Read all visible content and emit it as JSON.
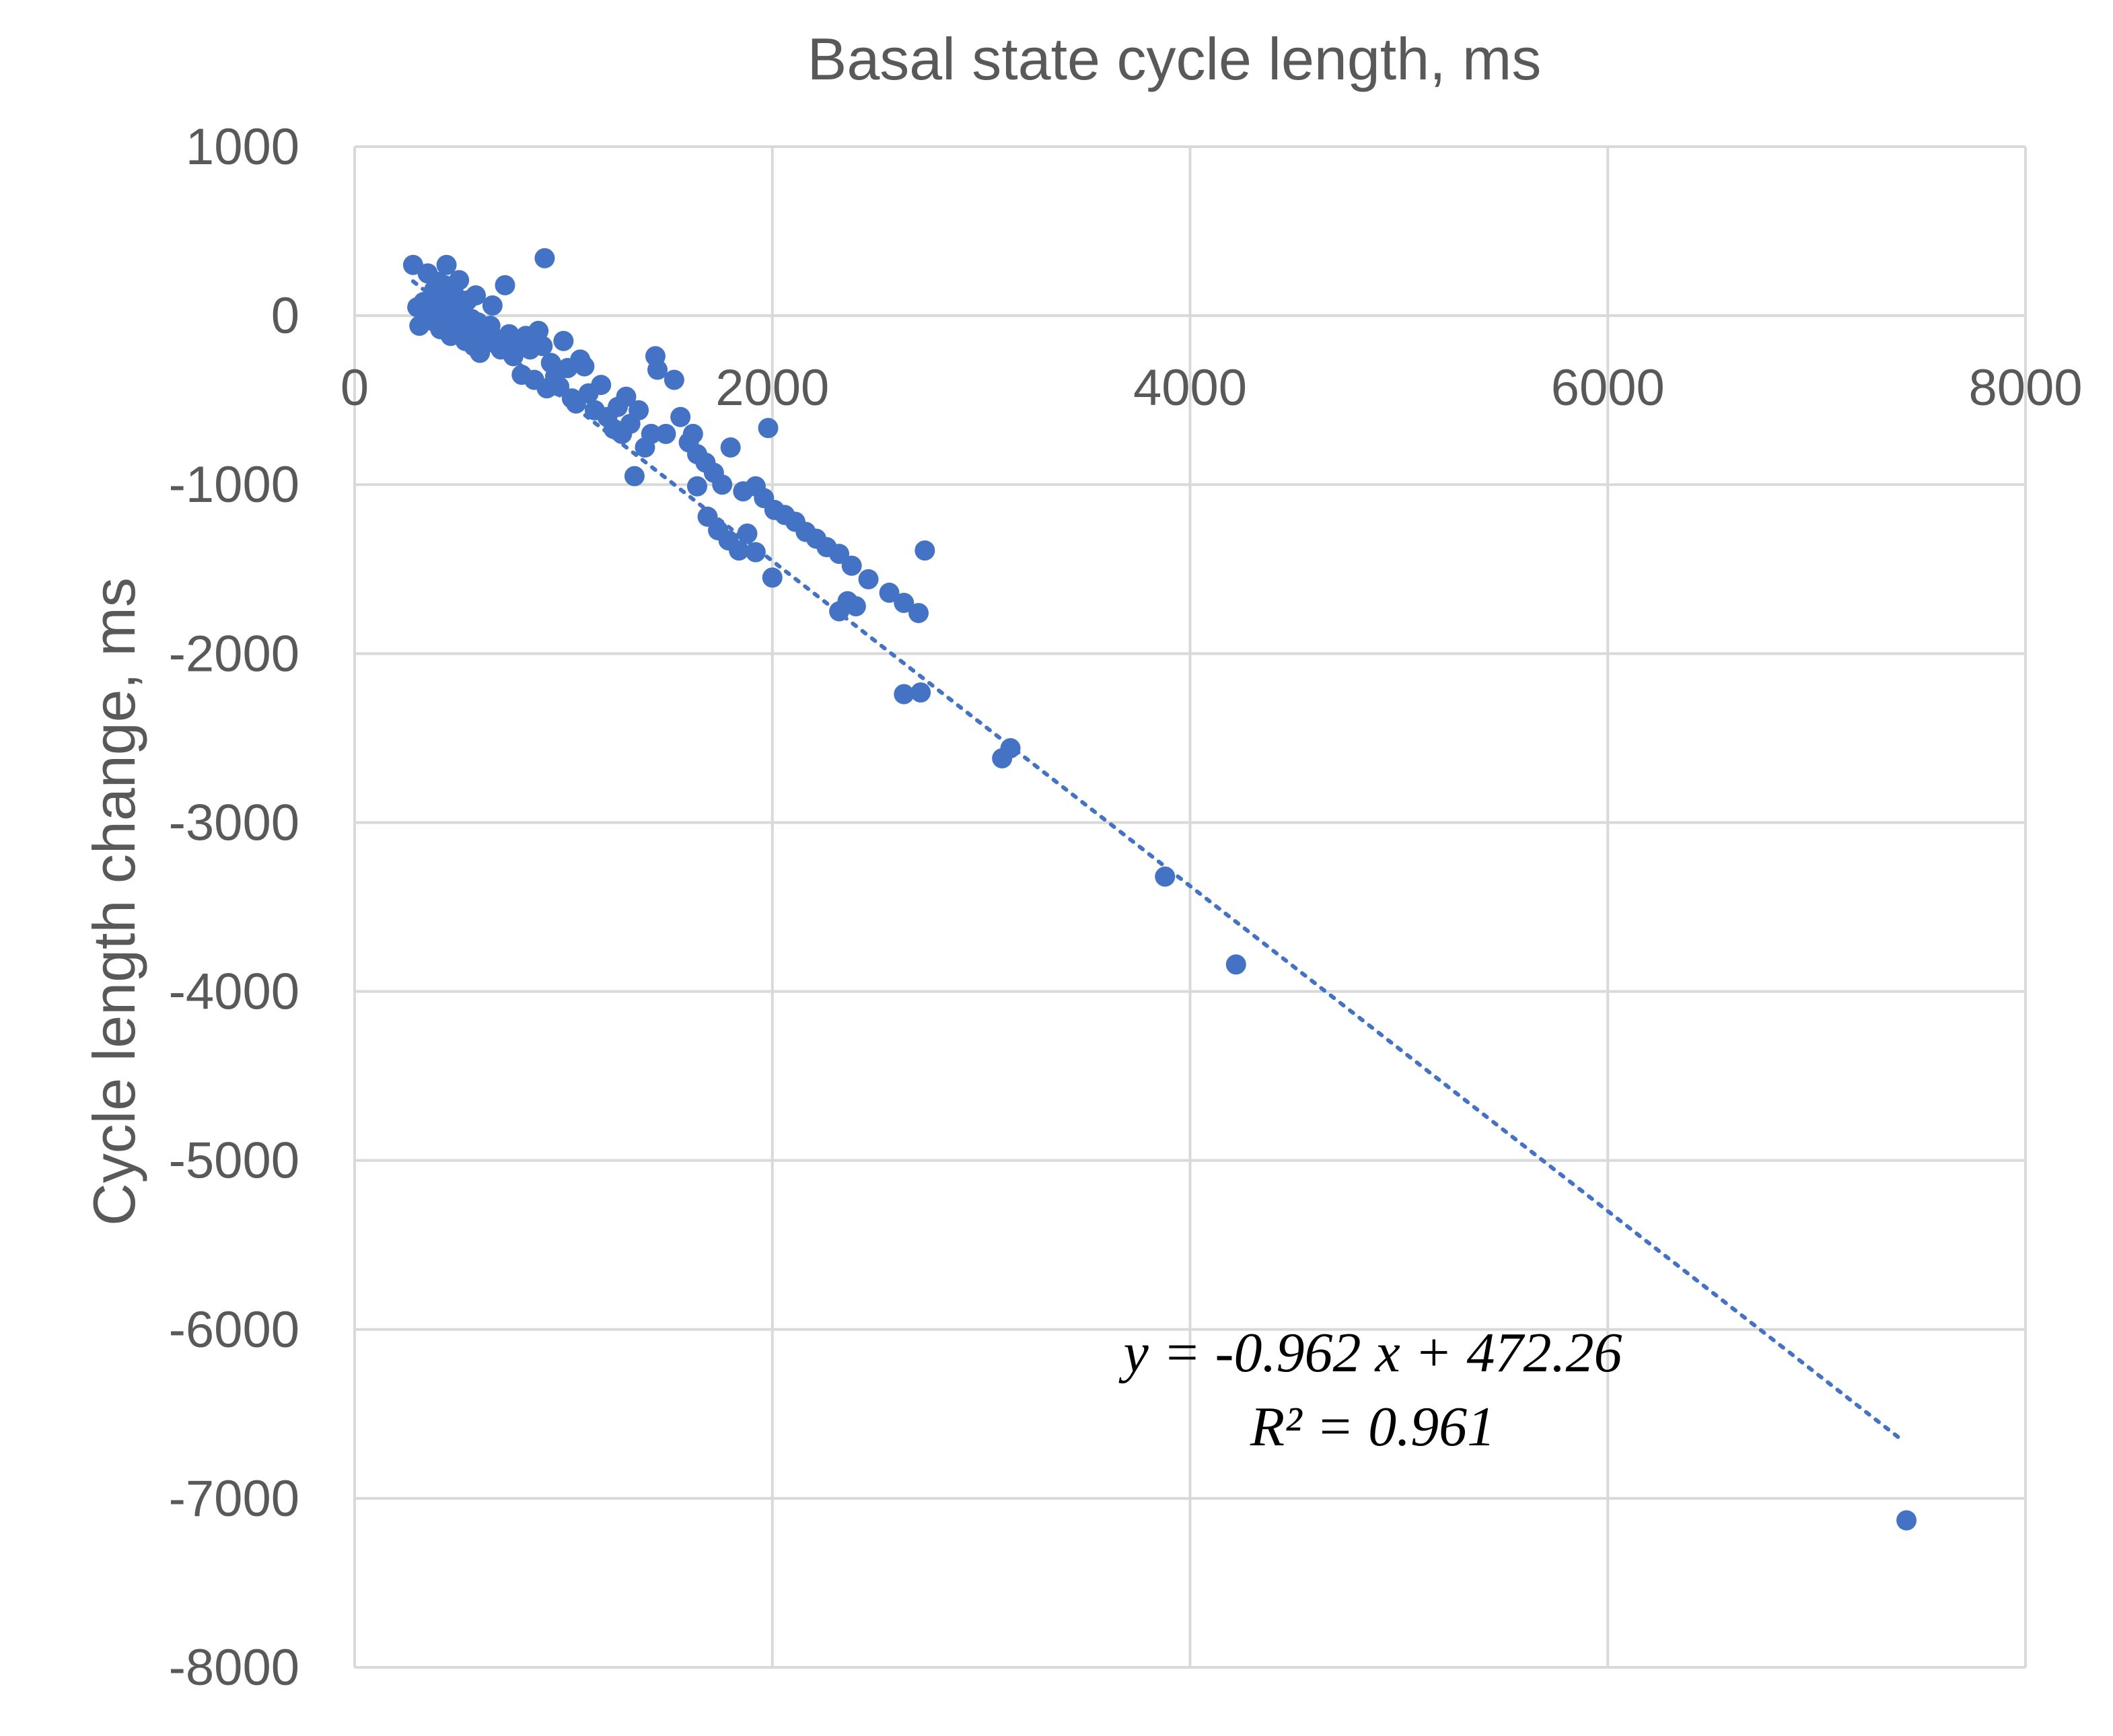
{
  "chart_data": {
    "type": "scatter",
    "title": "Basal state cycle length, ms",
    "xlabel": "Basal state cycle length, ms",
    "ylabel": "Cycle length change, ms",
    "xlim": [
      0,
      8000
    ],
    "ylim": [
      -8000,
      1000
    ],
    "x_ticks": [
      0,
      2000,
      4000,
      6000,
      8000
    ],
    "y_ticks": [
      1000,
      0,
      -1000,
      -2000,
      -3000,
      -4000,
      -5000,
      -6000,
      -7000,
      -8000
    ],
    "x_tick_labels": [
      "0",
      "2000",
      "4000",
      "6000",
      "8000"
    ],
    "y_tick_labels": [
      "1000",
      "0",
      "-1000",
      "-2000",
      "-3000",
      "-4000",
      "-5000",
      "-6000",
      "-7000",
      "-8000"
    ],
    "grid": true,
    "point_color": "#4472c4",
    "trendline": {
      "style": "dotted",
      "slope": -0.962,
      "intercept": 472.26,
      "x_range": [
        280,
        7400
      ],
      "equation_label": "y = -0.962 x + 472.26",
      "r2_label": "R² = 0.961"
    },
    "series": [
      {
        "points": [
          [
            280,
            300
          ],
          [
            300,
            50
          ],
          [
            310,
            -60
          ],
          [
            330,
            80
          ],
          [
            350,
            250
          ],
          [
            360,
            20
          ],
          [
            370,
            -30
          ],
          [
            380,
            150
          ],
          [
            390,
            60
          ],
          [
            400,
            200
          ],
          [
            410,
            -80
          ],
          [
            420,
            100
          ],
          [
            430,
            180
          ],
          [
            440,
            300
          ],
          [
            450,
            0
          ],
          [
            460,
            -120
          ],
          [
            470,
            50
          ],
          [
            480,
            120
          ],
          [
            490,
            -50
          ],
          [
            500,
            210
          ],
          [
            510,
            -100
          ],
          [
            520,
            30
          ],
          [
            530,
            -150
          ],
          [
            540,
            90
          ],
          [
            550,
            -70
          ],
          [
            560,
            -20
          ],
          [
            570,
            -180
          ],
          [
            580,
            120
          ],
          [
            590,
            -40
          ],
          [
            600,
            -220
          ],
          [
            620,
            -90
          ],
          [
            640,
            -130
          ],
          [
            650,
            -60
          ],
          [
            660,
            60
          ],
          [
            680,
            -170
          ],
          [
            700,
            -200
          ],
          [
            710,
            -140
          ],
          [
            720,
            180
          ],
          [
            740,
            -110
          ],
          [
            760,
            -240
          ],
          [
            780,
            -160
          ],
          [
            800,
            -350
          ],
          [
            820,
            -120
          ],
          [
            840,
            -200
          ],
          [
            860,
            -380
          ],
          [
            880,
            -90
          ],
          [
            900,
            -180
          ],
          [
            920,
            -430
          ],
          [
            940,
            -280
          ],
          [
            960,
            -360
          ],
          [
            980,
            -420
          ],
          [
            1000,
            -150
          ],
          [
            1020,
            -310
          ],
          [
            1040,
            -490
          ],
          [
            1060,
            -520
          ],
          [
            1080,
            -260
          ],
          [
            1100,
            -300
          ],
          [
            1120,
            -460
          ],
          [
            1150,
            -560
          ],
          [
            1180,
            -410
          ],
          [
            1210,
            -600
          ],
          [
            1240,
            -670
          ],
          [
            1260,
            -540
          ],
          [
            1280,
            -700
          ],
          [
            1300,
            -480
          ],
          [
            1320,
            -640
          ],
          [
            1360,
            -560
          ],
          [
            1390,
            -780
          ],
          [
            1420,
            -700
          ],
          [
            1450,
            -320
          ],
          [
            1490,
            -700
          ],
          [
            1530,
            -380
          ],
          [
            1560,
            -600
          ],
          [
            1600,
            -750
          ],
          [
            1640,
            -820
          ],
          [
            1680,
            -870
          ],
          [
            1720,
            -930
          ],
          [
            1760,
            -1000
          ],
          [
            1800,
            -780
          ],
          [
            1860,
            -1040
          ],
          [
            1920,
            -1010
          ],
          [
            1960,
            -1080
          ],
          [
            2010,
            -1150
          ],
          [
            2060,
            -1180
          ],
          [
            2110,
            -1220
          ],
          [
            2160,
            -1280
          ],
          [
            2210,
            -1320
          ],
          [
            2260,
            -1370
          ],
          [
            2320,
            -1410
          ],
          [
            2380,
            -1480
          ],
          [
            2460,
            -1560
          ],
          [
            2560,
            -1640
          ],
          [
            2630,
            -1700
          ],
          [
            2700,
            -1760
          ],
          [
            910,
            340
          ],
          [
            1440,
            -240
          ],
          [
            1620,
            -700
          ],
          [
            1980,
            -665
          ],
          [
            1340,
            -950
          ],
          [
            1640,
            -1010
          ],
          [
            1690,
            -1190
          ],
          [
            1740,
            -1270
          ],
          [
            1790,
            -1330
          ],
          [
            1840,
            -1390
          ],
          [
            1880,
            -1290
          ],
          [
            1920,
            -1400
          ],
          [
            2000,
            -1550
          ],
          [
            2320,
            -1750
          ],
          [
            2360,
            -1690
          ],
          [
            2400,
            -1720
          ],
          [
            2630,
            -2240
          ],
          [
            2710,
            -2230
          ],
          [
            2730,
            -1390
          ],
          [
            3100,
            -2620
          ],
          [
            3140,
            -2560
          ],
          [
            3880,
            -3320
          ],
          [
            4220,
            -3840
          ],
          [
            7430,
            -7130
          ]
        ]
      }
    ]
  }
}
